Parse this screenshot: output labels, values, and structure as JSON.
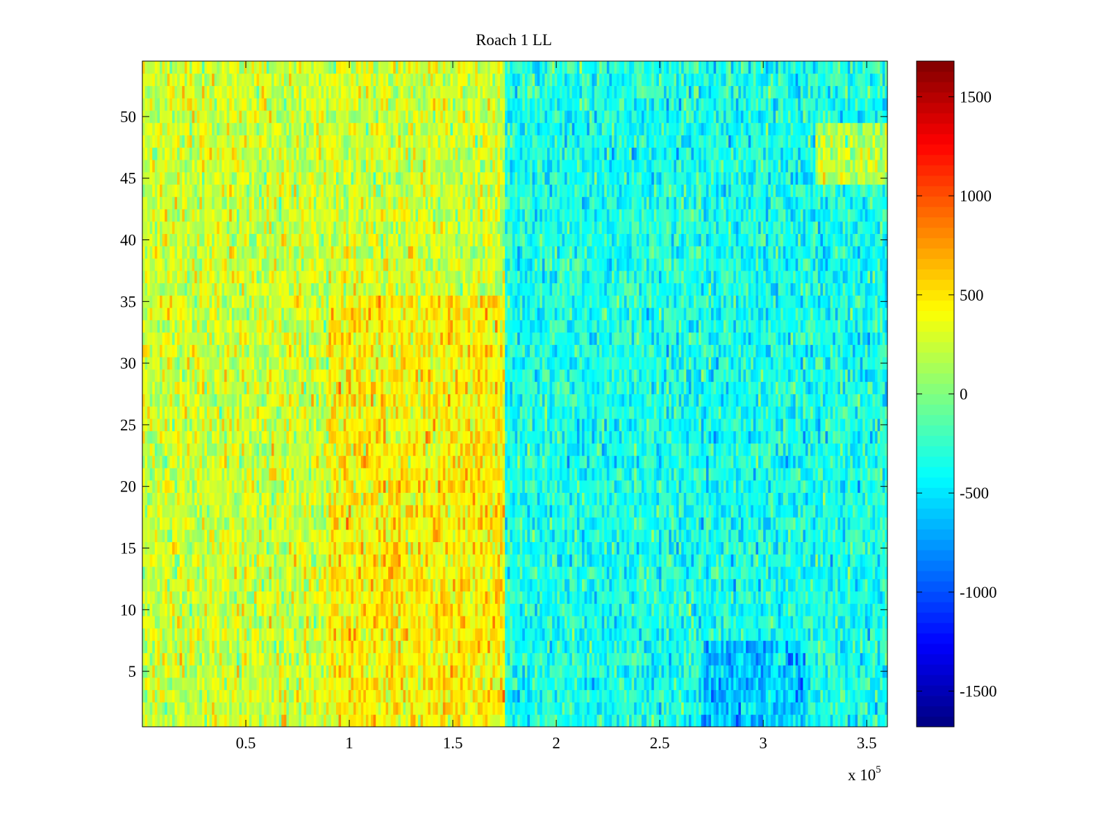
{
  "chart_data": {
    "type": "heatmap",
    "title": "Roach 1 LL",
    "xlabel": "",
    "ylabel": "",
    "x_multiplier_label": "x 10",
    "x_multiplier_exponent": "5",
    "xlim": [
      0,
      360000
    ],
    "ylim": [
      0.5,
      54.5
    ],
    "x_ticks": [
      {
        "value": 50000,
        "label": "0.5"
      },
      {
        "value": 100000,
        "label": "1"
      },
      {
        "value": 150000,
        "label": "1.5"
      },
      {
        "value": 200000,
        "label": "2"
      },
      {
        "value": 250000,
        "label": "2.5"
      },
      {
        "value": 300000,
        "label": "3"
      },
      {
        "value": 350000,
        "label": "3.5"
      }
    ],
    "y_ticks": [
      {
        "value": 5,
        "label": "5"
      },
      {
        "value": 10,
        "label": "10"
      },
      {
        "value": 15,
        "label": "15"
      },
      {
        "value": 20,
        "label": "20"
      },
      {
        "value": 25,
        "label": "25"
      },
      {
        "value": 30,
        "label": "30"
      },
      {
        "value": 35,
        "label": "35"
      },
      {
        "value": 40,
        "label": "40"
      },
      {
        "value": 45,
        "label": "45"
      },
      {
        "value": 50,
        "label": "50"
      }
    ],
    "colorbar": {
      "colormap": "jet",
      "clim": [
        -1680,
        1680
      ],
      "ticks": [
        {
          "value": 1500,
          "label": "1500"
        },
        {
          "value": 1000,
          "label": "1000"
        },
        {
          "value": 500,
          "label": "500"
        },
        {
          "value": 0,
          "label": "0"
        },
        {
          "value": -500,
          "label": "-500"
        },
        {
          "value": -1000,
          "label": "-1000"
        },
        {
          "value": -1500,
          "label": "-1500"
        }
      ]
    },
    "rows": 54,
    "value_regions": [
      {
        "x_range": [
          0,
          175000
        ],
        "y_range": [
          0.5,
          54.5
        ],
        "approx_mean": 250
      },
      {
        "x_range": [
          90000,
          175000
        ],
        "y_range": [
          0.5,
          36
        ],
        "approx_mean": 450
      },
      {
        "x_range": [
          175000,
          360000
        ],
        "y_range": [
          0.5,
          54.5
        ],
        "approx_mean": -350
      },
      {
        "x_range": [
          270000,
          320000
        ],
        "y_range": [
          0.5,
          8
        ],
        "approx_mean": -600
      },
      {
        "x_range": [
          325000,
          360000
        ],
        "y_range": [
          45,
          50
        ],
        "approx_mean": 200
      }
    ]
  }
}
